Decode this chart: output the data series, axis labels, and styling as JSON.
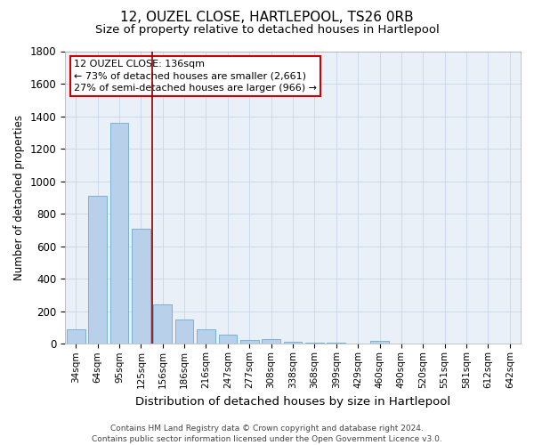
{
  "title": "12, OUZEL CLOSE, HARTLEPOOL, TS26 0RB",
  "subtitle": "Size of property relative to detached houses in Hartlepool",
  "xlabel": "Distribution of detached houses by size in Hartlepool",
  "ylabel": "Number of detached properties",
  "categories": [
    "34sqm",
    "64sqm",
    "95sqm",
    "125sqm",
    "156sqm",
    "186sqm",
    "216sqm",
    "247sqm",
    "277sqm",
    "308sqm",
    "338sqm",
    "368sqm",
    "399sqm",
    "429sqm",
    "460sqm",
    "490sqm",
    "520sqm",
    "551sqm",
    "581sqm",
    "612sqm",
    "642sqm"
  ],
  "values": [
    88,
    910,
    1360,
    710,
    245,
    148,
    88,
    55,
    22,
    28,
    15,
    8,
    5,
    3,
    18,
    2,
    0,
    0,
    0,
    0,
    0
  ],
  "bar_color": "#b8d0ea",
  "bar_edge_color": "#6aaad4",
  "vline_x_index": 3.5,
  "vline_color": "#8b0000",
  "annotation_line1": "12 OUZEL CLOSE: 136sqm",
  "annotation_line2": "← 73% of detached houses are smaller (2,661)",
  "annotation_line3": "27% of semi-detached houses are larger (966) →",
  "annotation_box_color": "#ffffff",
  "annotation_box_edge": "#cc0000",
  "footnote": "Contains HM Land Registry data © Crown copyright and database right 2024.\nContains public sector information licensed under the Open Government Licence v3.0.",
  "ylim": [
    0,
    1800
  ],
  "yticks": [
    0,
    200,
    400,
    600,
    800,
    1000,
    1200,
    1400,
    1600,
    1800
  ],
  "title_fontsize": 11,
  "subtitle_fontsize": 9.5,
  "ylabel_fontsize": 8.5,
  "xlabel_fontsize": 9.5,
  "tick_fontsize": 7.5,
  "annotation_fontsize": 8,
  "footnote_fontsize": 6.5,
  "background_color": "#ffffff",
  "axes_background": "#eaf0f8",
  "grid_color": "#c8d4e8"
}
